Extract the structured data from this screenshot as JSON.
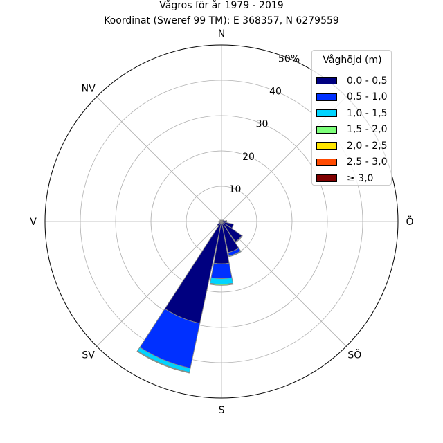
{
  "chart_data": {
    "type": "windrose",
    "title": "Vågros för år 1979 - 2019",
    "subtitle": "Koordinat (Sweref 99 TM): E 368357, N 6279559",
    "directions": [
      "N",
      "NV",
      "V",
      "SV",
      "S",
      "SÖ",
      "Ö"
    ],
    "radial_ticks": [
      "10",
      "20",
      "30",
      "40",
      "50%"
    ],
    "radial_tick_values": [
      10,
      20,
      30,
      40,
      50
    ],
    "rmax": 50,
    "grid": true,
    "legend_title": "Våghöjd (m)",
    "legend_position": "top-right",
    "bins": [
      {
        "label": "0,0 - 0,5",
        "color": "#000080"
      },
      {
        "label": "0,5 - 1,0",
        "color": "#0030ff"
      },
      {
        "label": "1,0 - 1,5",
        "color": "#00d4ff"
      },
      {
        "label": "1,5 - 2,0",
        "color": "#7dff7a"
      },
      {
        "label": "2,0 - 2,5",
        "color": "#ffe600"
      },
      {
        "label": "2,5 - 3,0",
        "color": "#ff4a00"
      },
      {
        "label": "≥ 3,0",
        "color": "#800000"
      }
    ],
    "sectors": [
      {
        "direction_deg": 202.5,
        "values": [
          29.5,
          13.0,
          1.2,
          0.2,
          0,
          0,
          0
        ]
      },
      {
        "direction_deg": 180,
        "values": [
          12.0,
          4.2,
          1.6,
          0.3,
          0,
          0,
          0
        ]
      },
      {
        "direction_deg": 157.5,
        "values": [
          9.0,
          1.0,
          0.2,
          0,
          0,
          0,
          0
        ]
      },
      {
        "direction_deg": 135,
        "values": [
          7.0,
          0.2,
          0,
          0,
          0,
          0,
          0
        ]
      },
      {
        "direction_deg": 112.5,
        "values": [
          3.5,
          0,
          0,
          0,
          0,
          0,
          0
        ]
      },
      {
        "direction_deg": 90,
        "values": [
          1.5,
          0,
          0,
          0,
          0,
          0,
          0
        ]
      },
      {
        "direction_deg": 67.5,
        "values": [
          0.8,
          0,
          0,
          0,
          0,
          0,
          0
        ]
      },
      {
        "direction_deg": 45,
        "values": [
          0.5,
          0,
          0,
          0,
          0,
          0,
          0
        ]
      },
      {
        "direction_deg": 22.5,
        "values": [
          0.4,
          0,
          0,
          0,
          0,
          0,
          0
        ]
      },
      {
        "direction_deg": 0,
        "values": [
          0.4,
          0,
          0,
          0,
          0,
          0,
          0
        ]
      },
      {
        "direction_deg": 337.5,
        "values": [
          0.4,
          0,
          0,
          0,
          0,
          0,
          0
        ]
      },
      {
        "direction_deg": 315,
        "values": [
          0.5,
          0,
          0,
          0,
          0,
          0,
          0
        ]
      },
      {
        "direction_deg": 292.5,
        "values": [
          0.5,
          0,
          0,
          0,
          0,
          0,
          0
        ]
      },
      {
        "direction_deg": 270,
        "values": [
          0.6,
          0,
          0,
          0,
          0,
          0,
          0
        ]
      },
      {
        "direction_deg": 247.5,
        "values": [
          0.8,
          0,
          0,
          0,
          0,
          0,
          0
        ]
      },
      {
        "direction_deg": 225,
        "values": [
          1.5,
          0,
          0,
          0,
          0,
          0,
          0
        ]
      }
    ]
  }
}
